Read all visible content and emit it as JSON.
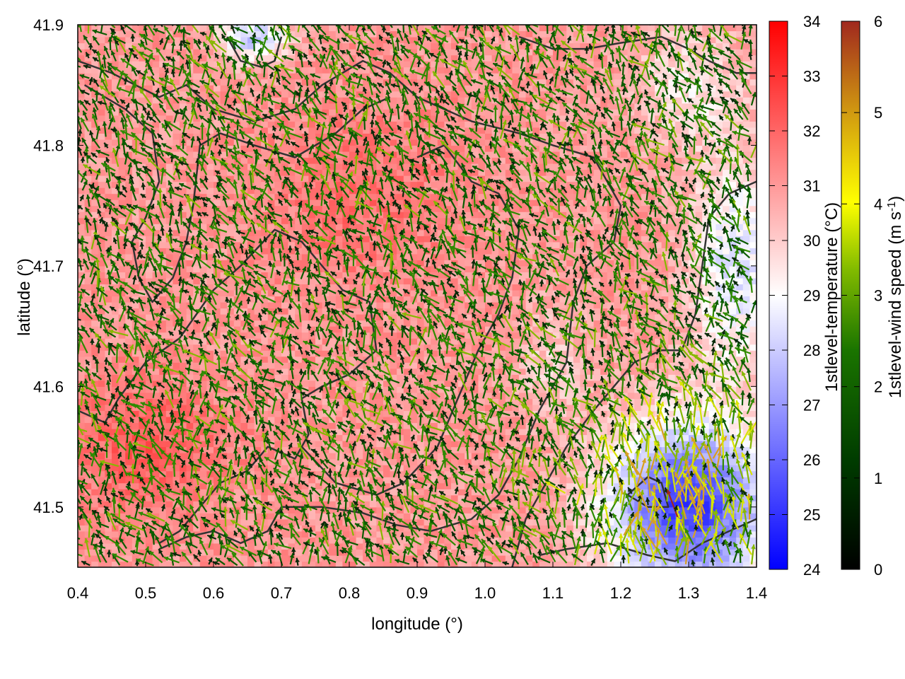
{
  "chart_data": {
    "type": "heatmap",
    "title": "",
    "xlabel": "longitude (°)",
    "ylabel": "latitude (°)",
    "xlim": [
      0.4,
      1.4
    ],
    "ylim": [
      41.45,
      41.9
    ],
    "x_ticks": [
      "0.4",
      "0.5",
      "0.6",
      "0.7",
      "0.8",
      "0.9",
      "1.0",
      "1.1",
      "1.2",
      "1.3",
      "1.4"
    ],
    "y_ticks": [
      "41.5",
      "41.6",
      "41.7",
      "41.8",
      "41.9"
    ],
    "grid": false,
    "temperature": {
      "colorbar_label": "1stlevel-temperature (°C)",
      "range": [
        24,
        34
      ],
      "ticks": [
        "24",
        "25",
        "26",
        "27",
        "28",
        "29",
        "30",
        "31",
        "32",
        "33",
        "34"
      ],
      "colors": [
        "#0000ff",
        "#ffffff",
        "#ff0000"
      ],
      "field_samples": [
        {
          "lon": 0.5,
          "lat": 41.55,
          "value": 32.5
        },
        {
          "lon": 0.8,
          "lat": 41.75,
          "value": 31.8
        },
        {
          "lon": 0.65,
          "lat": 41.88,
          "value": 27.5
        },
        {
          "lon": 1.3,
          "lat": 41.5,
          "value": 25.5
        },
        {
          "lon": 1.35,
          "lat": 41.7,
          "value": 28.5
        }
      ]
    },
    "wind": {
      "colorbar_label_main": "1stlevel-wind speed (m s",
      "colorbar_label_sup": "-1",
      "colorbar_label_end": ")",
      "range": [
        0,
        6
      ],
      "ticks": [
        "0",
        "1",
        "2",
        "3",
        "4",
        "5",
        "6"
      ],
      "colors": [
        "#000000",
        "#006400",
        "#7cba00",
        "#ffff00",
        "#c89614",
        "#a0281e"
      ],
      "prevailing_direction": "north-west",
      "typical_speed": 2.0,
      "max_speed": 5.0
    },
    "contours": {
      "color": "#333333",
      "description": "administrative boundaries"
    }
  }
}
